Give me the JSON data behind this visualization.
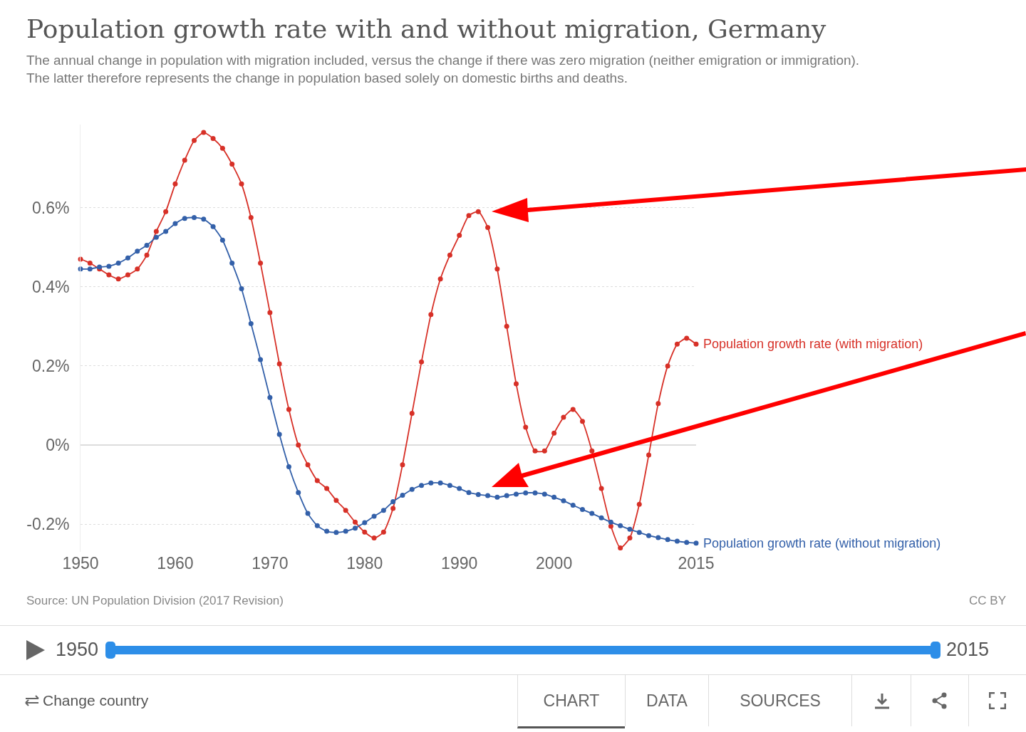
{
  "chart_data": {
    "type": "line",
    "title": "Population growth rate with and without migration, Germany",
    "subtitle": "The annual change in population with migration included, versus the change if there was zero migration (neither emigration or immigration). The latter therefore represents the change in population based solely on domestic births and deaths.",
    "x": [
      1950,
      1951,
      1952,
      1953,
      1954,
      1955,
      1956,
      1957,
      1958,
      1959,
      1960,
      1961,
      1962,
      1963,
      1964,
      1965,
      1966,
      1967,
      1968,
      1969,
      1970,
      1971,
      1972,
      1973,
      1974,
      1975,
      1976,
      1977,
      1978,
      1979,
      1980,
      1981,
      1982,
      1983,
      1984,
      1985,
      1986,
      1987,
      1988,
      1989,
      1990,
      1991,
      1992,
      1993,
      1994,
      1995,
      1996,
      1997,
      1998,
      1999,
      2000,
      2001,
      2002,
      2003,
      2004,
      2005,
      2006,
      2007,
      2008,
      2009,
      2010,
      2011,
      2012,
      2013,
      2014,
      2015
    ],
    "series": [
      {
        "name": "Population growth rate (with migration)",
        "color": "#d73027",
        "values": [
          0.47,
          0.46,
          0.445,
          0.43,
          0.42,
          0.43,
          0.445,
          0.48,
          0.54,
          0.59,
          0.66,
          0.72,
          0.77,
          0.79,
          0.775,
          0.75,
          0.71,
          0.66,
          0.575,
          0.46,
          0.335,
          0.205,
          0.09,
          0.0,
          -0.05,
          -0.09,
          -0.11,
          -0.14,
          -0.165,
          -0.195,
          -0.22,
          -0.235,
          -0.22,
          -0.16,
          -0.05,
          0.08,
          0.21,
          0.33,
          0.42,
          0.48,
          0.53,
          0.58,
          0.59,
          0.55,
          0.445,
          0.3,
          0.155,
          0.045,
          -0.015,
          -0.015,
          0.03,
          0.07,
          0.09,
          0.06,
          -0.015,
          -0.11,
          -0.205,
          -0.26,
          -0.235,
          -0.15,
          -0.025,
          0.105,
          0.2,
          0.255,
          0.27,
          0.255
        ]
      },
      {
        "name": "Population growth rate (without migration)",
        "color": "#3360a9",
        "values": [
          0.445,
          0.445,
          0.45,
          0.452,
          0.46,
          0.473,
          0.49,
          0.505,
          0.525,
          0.54,
          0.56,
          0.573,
          0.575,
          0.571,
          0.552,
          0.518,
          0.46,
          0.395,
          0.307,
          0.216,
          0.12,
          0.027,
          -0.055,
          -0.12,
          -0.173,
          -0.204,
          -0.218,
          -0.221,
          -0.218,
          -0.21,
          -0.196,
          -0.18,
          -0.165,
          -0.143,
          -0.127,
          -0.112,
          -0.102,
          -0.096,
          -0.096,
          -0.102,
          -0.11,
          -0.12,
          -0.125,
          -0.128,
          -0.132,
          -0.128,
          -0.124,
          -0.121,
          -0.121,
          -0.124,
          -0.132,
          -0.141,
          -0.152,
          -0.163,
          -0.173,
          -0.184,
          -0.195,
          -0.204,
          -0.213,
          -0.221,
          -0.229,
          -0.234,
          -0.239,
          -0.243,
          -0.246,
          -0.248
        ]
      }
    ],
    "xlim": [
      1950,
      2015
    ],
    "xticks": [
      1950,
      1960,
      1970,
      1980,
      1990,
      2000,
      2015
    ],
    "ylim": [
      -0.27,
      0.81
    ],
    "yticks": [
      {
        "value": -0.2,
        "label": "-0.2%"
      },
      {
        "value": 0,
        "label": "0%"
      },
      {
        "value": 0.2,
        "label": "0.2%"
      },
      {
        "value": 0.4,
        "label": "0.4%"
      },
      {
        "value": 0.6,
        "label": "0.6%"
      }
    ],
    "grid": "y",
    "legend": "right",
    "marker": "circle",
    "line_style": "solid",
    "annotations": [
      "Source: UN Population Division (2017 Revision)",
      "CC BY",
      "1950",
      "2015",
      "Change country",
      "CHART",
      "DATA",
      "SOURCES"
    ]
  }
}
